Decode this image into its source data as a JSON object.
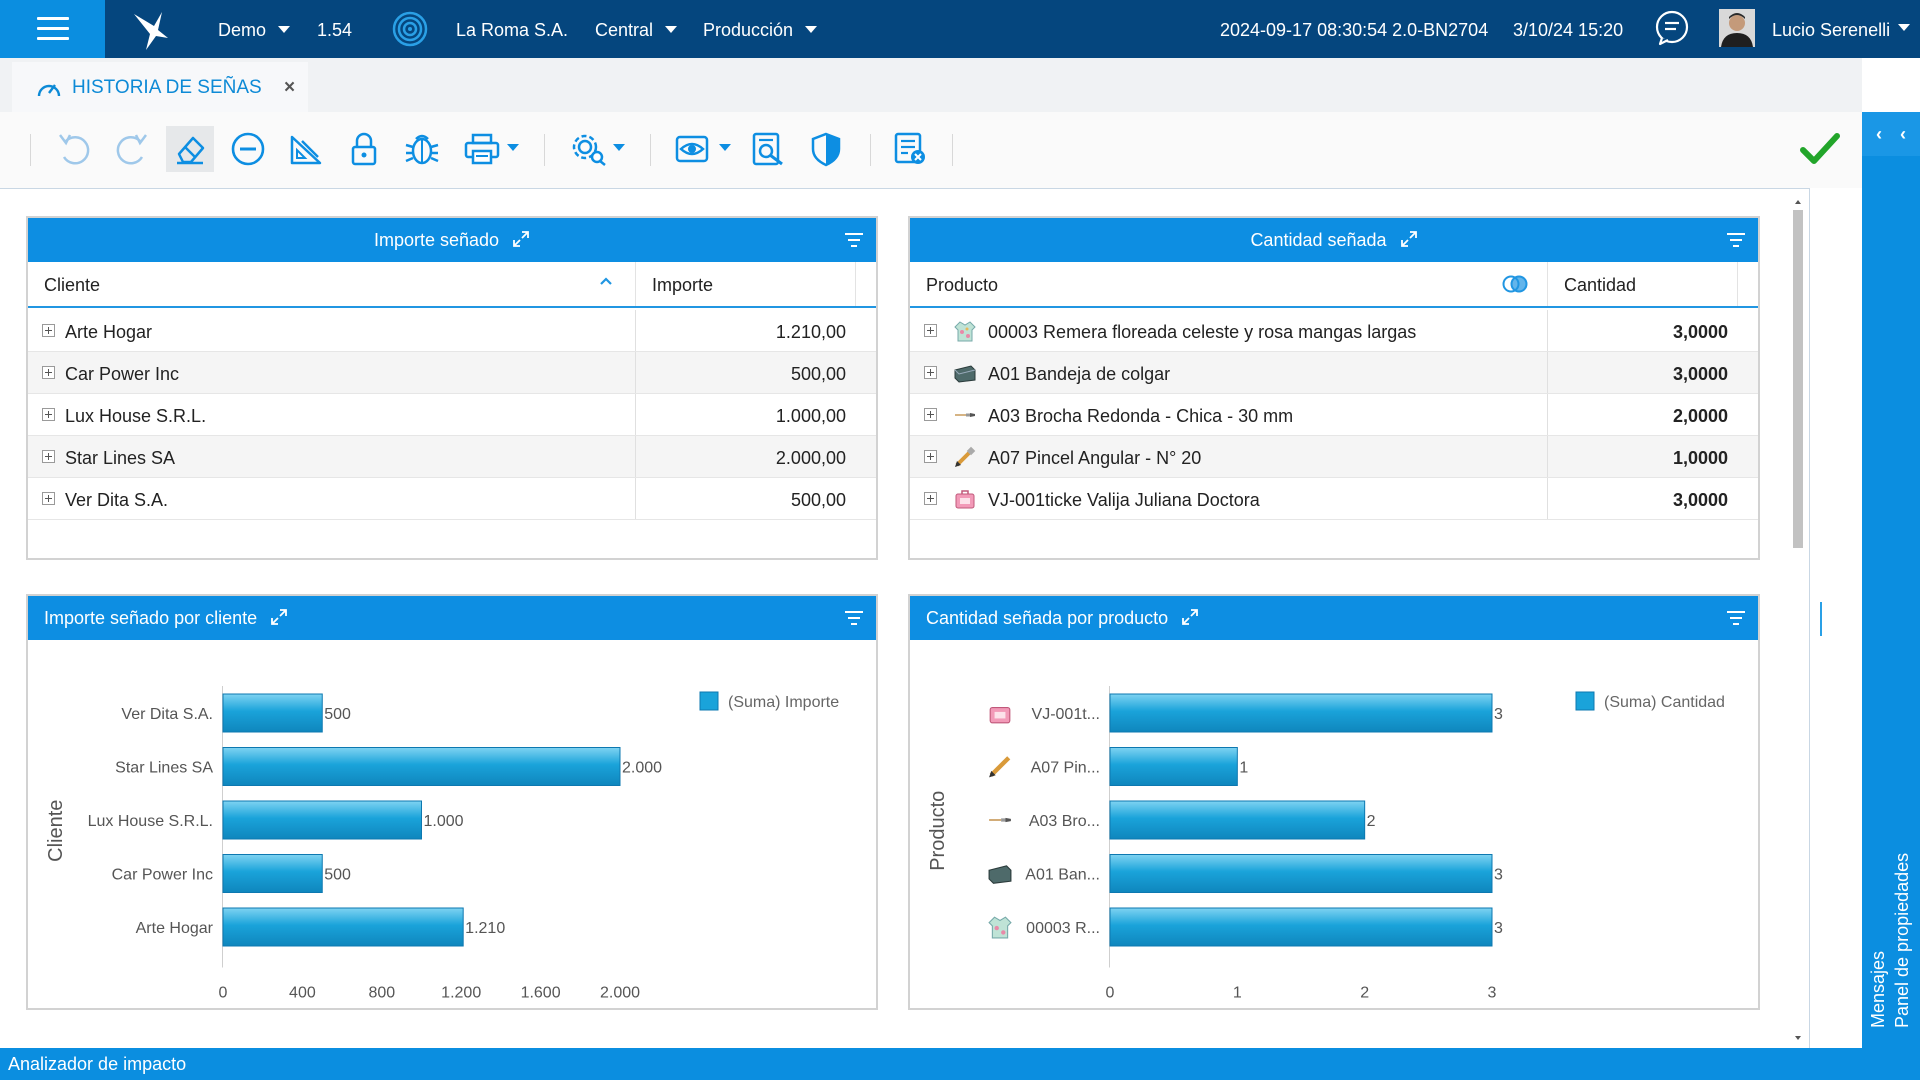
{
  "topbar": {
    "company_menu": "Demo",
    "version": "1.54",
    "organization": "La Roma S.A.",
    "branch": "Central",
    "environment": "Producción",
    "build": "2024-09-17 08:30:54 2.0-BN2704",
    "datetime": "3/10/24 15:20",
    "user_name": "Lucio Serenelli",
    "icons": [
      "menu-icon",
      "logo-bird-icon",
      "fingerprint-icon",
      "chat-icon",
      "avatar"
    ]
  },
  "tab": {
    "label": "HISTORIA DE SEÑAS",
    "close": "×",
    "icon": "gauge-icon"
  },
  "toolbar": {
    "icons": [
      "undo-icon",
      "redo-icon",
      "eraser-icon",
      "minus-circle-icon",
      "ruler-icon",
      "lock-icon",
      "bug-icon",
      "print-icon",
      "settings-icon",
      "eye-icon",
      "report-search-icon",
      "shield-icon",
      "list-cancel-icon",
      "check-icon"
    ],
    "accent": "#0b8ee0",
    "ok_color": "#22a52a"
  },
  "panel_importe": {
    "title": "Importe señado",
    "col_cliente": "Cliente",
    "col_importe": "Importe",
    "rows": [
      {
        "cliente": "Arte Hogar",
        "importe": "1.210,00"
      },
      {
        "cliente": "Car Power Inc",
        "importe": "500,00"
      },
      {
        "cliente": "Lux House S.R.L.",
        "importe": "1.000,00"
      },
      {
        "cliente": "Star Lines SA",
        "importe": "2.000,00"
      },
      {
        "cliente": "Ver Dita S.A.",
        "importe": "500,00"
      }
    ]
  },
  "panel_cantidad": {
    "title": "Cantidad señada",
    "col_producto": "Producto",
    "col_cantidad": "Cantidad",
    "rows": [
      {
        "producto": "00003 Remera floreada celeste y rosa mangas largas",
        "cantidad": "3,0000",
        "icon": "shirt-thumb"
      },
      {
        "producto": "A01 Bandeja de colgar",
        "cantidad": "3,0000",
        "icon": "tray-thumb"
      },
      {
        "producto": "A03 Brocha Redonda - Chica - 30 mm",
        "cantidad": "2,0000",
        "icon": "brush-thumb"
      },
      {
        "producto": "A07 Pincel Angular - N° 20",
        "cantidad": "1,0000",
        "icon": "pencil-thumb"
      },
      {
        "producto": "VJ-001ticke Valija Juliana Doctora",
        "cantidad": "3,0000",
        "icon": "suitcase-thumb"
      }
    ]
  },
  "chart_importe_title": "Importe señado por cliente",
  "chart_cantidad_title": "Cantidad señada por producto",
  "chart_data": [
    {
      "type": "bar",
      "orientation": "horizontal",
      "title": "Importe señado por cliente",
      "ylabel": "Cliente",
      "xlabel": "",
      "categories": [
        "Ver Dita S.A.",
        "Star Lines SA",
        "Lux House S.R.L.",
        "Car Power Inc",
        "Arte Hogar"
      ],
      "series": [
        {
          "name": "(Suma) Importe",
          "values": [
            500,
            2000,
            1000,
            500,
            1210
          ]
        }
      ],
      "value_labels": [
        "500",
        "2.000",
        "1.000",
        "500",
        "1.210"
      ],
      "xlim": [
        0,
        2000
      ],
      "xticks": [
        "0",
        "400",
        "800",
        "1.200",
        "1.600",
        "2.000"
      ],
      "xtick_values": [
        0,
        400,
        800,
        1200,
        1600,
        2000
      ],
      "legend": "top-right",
      "grid": false,
      "color": "#1aa3da"
    },
    {
      "type": "bar",
      "orientation": "horizontal",
      "title": "Cantidad señada por producto",
      "ylabel": "Producto",
      "xlabel": "",
      "categories": [
        "VJ-001t...",
        "A07 Pin...",
        "A03 Bro...",
        "A01 Ban...",
        "00003 R..."
      ],
      "series": [
        {
          "name": "(Suma) Cantidad",
          "values": [
            3,
            1,
            2,
            3,
            3
          ]
        }
      ],
      "value_labels": [
        "3",
        "1",
        "2",
        "3",
        "3"
      ],
      "xlim": [
        0,
        3
      ],
      "xticks": [
        "0",
        "1",
        "2",
        "3"
      ],
      "xtick_values": [
        0,
        1,
        2,
        3
      ],
      "legend": "top-right",
      "grid": false,
      "color": "#1aa3da"
    }
  ],
  "bottombar": {
    "label": "Analizador de impacto"
  },
  "rightbar": {
    "messages": "Mensajes",
    "properties": "Panel de propiedades"
  }
}
